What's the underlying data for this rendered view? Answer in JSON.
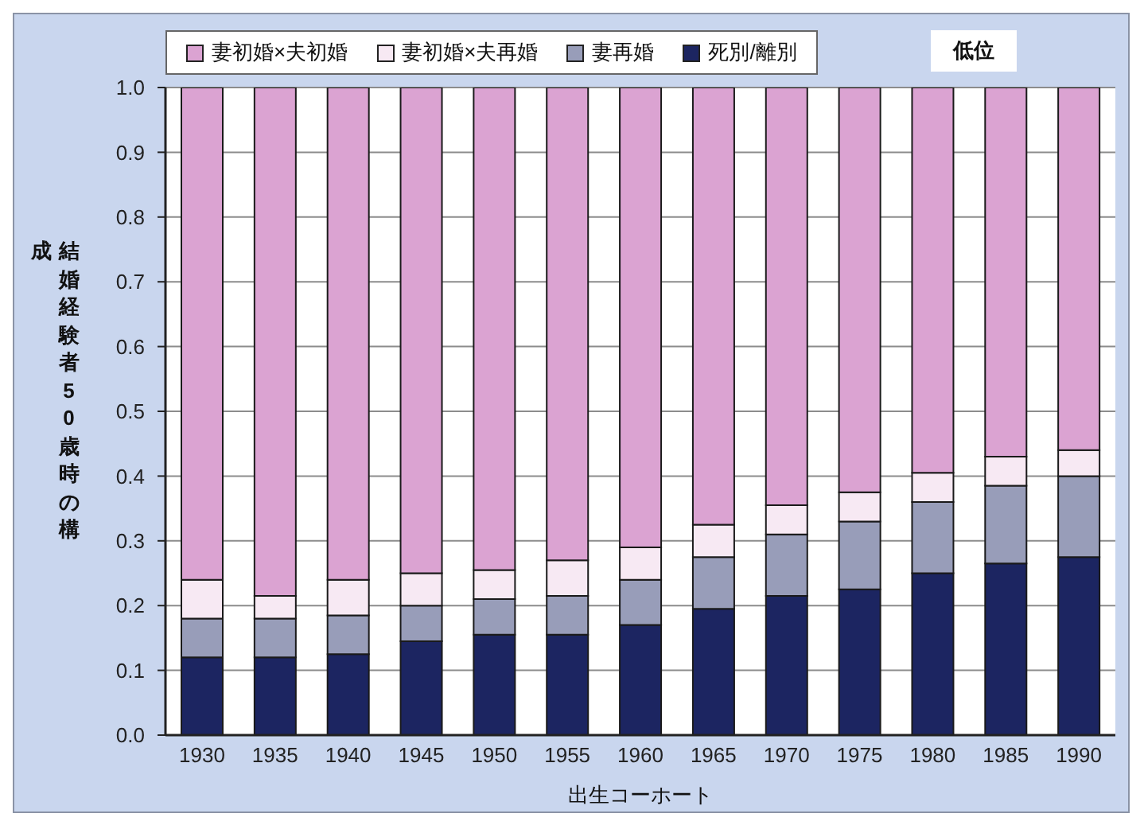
{
  "chart_data": {
    "type": "bar",
    "stacked": true,
    "xlabel": "出生コーホート",
    "ylabel": "結婚経験者50歳時の構成",
    "annotations": [
      "低位"
    ],
    "categories": [
      "1930",
      "1935",
      "1940",
      "1945",
      "1950",
      "1955",
      "1960",
      "1965",
      "1970",
      "1975",
      "1980",
      "1985",
      "1990"
    ],
    "series": [
      {
        "name": "死別/離別",
        "color": "#1c2561",
        "values": [
          0.12,
          0.12,
          0.125,
          0.145,
          0.155,
          0.155,
          0.17,
          0.195,
          0.215,
          0.225,
          0.25,
          0.265,
          0.275
        ]
      },
      {
        "name": "妻再婚",
        "color": "#989db9",
        "values": [
          0.06,
          0.06,
          0.06,
          0.055,
          0.055,
          0.06,
          0.07,
          0.08,
          0.095,
          0.105,
          0.11,
          0.12,
          0.125
        ]
      },
      {
        "name": "妻初婚×夫再婚",
        "color": "#f7e9f3",
        "values": [
          0.06,
          0.035,
          0.055,
          0.05,
          0.045,
          0.055,
          0.05,
          0.05,
          0.045,
          0.045,
          0.045,
          0.045,
          0.04
        ]
      },
      {
        "name": "妻初婚×夫初婚",
        "color": "#dba3d2",
        "values": [
          0.76,
          0.785,
          0.76,
          0.75,
          0.745,
          0.73,
          0.71,
          0.675,
          0.645,
          0.625,
          0.595,
          0.57,
          0.56
        ]
      }
    ],
    "ylim": [
      0,
      1
    ],
    "yticks": [
      {
        "value": 0,
        "label": "0.0"
      },
      0.1,
      0.2,
      0.3,
      0.4,
      0.5,
      0.6,
      0.7,
      0.8,
      0.9,
      {
        "value": 1,
        "label": "1.0"
      }
    ],
    "grid": "y",
    "legend": "top left"
  }
}
